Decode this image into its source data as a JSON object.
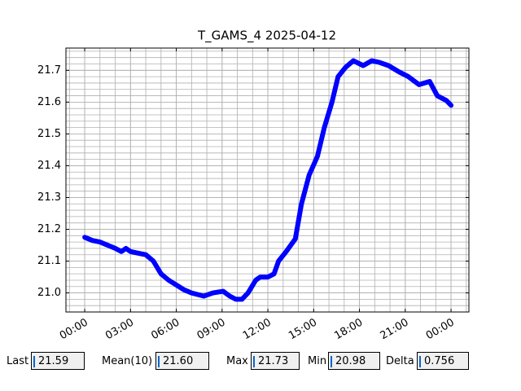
{
  "chart_data": {
    "type": "line",
    "title": "T_GAMS_4 2025-04-12",
    "x": [
      0,
      0.5,
      1,
      1.5,
      2,
      2.4,
      2.7,
      3,
      3.5,
      4,
      4.5,
      5,
      5.5,
      6,
      6.5,
      7,
      7.8,
      8.4,
      9.07,
      9.5,
      9.9,
      10.3,
      10.7,
      11.2,
      11.5,
      12,
      12.4,
      12.7,
      13.2,
      13.8,
      14.2,
      14.7,
      15.25,
      15.7,
      16.2,
      16.6,
      17.1,
      17.6,
      18.24,
      18.8,
      19.3,
      19.9,
      20.6,
      21.2,
      21.9,
      22.6,
      23.1,
      23.7,
      24
    ],
    "series": [
      {
        "name": "T_GAMS_4",
        "color": "#0000ff",
        "values": [
          21.175,
          21.165,
          21.16,
          21.15,
          21.14,
          21.13,
          21.14,
          21.13,
          21.125,
          21.12,
          21.1,
          21.06,
          21.04,
          21.025,
          21.01,
          21.0,
          20.99,
          21.0,
          21.005,
          20.99,
          20.98,
          20.98,
          21.0,
          21.04,
          21.05,
          21.05,
          21.06,
          21.1,
          21.13,
          21.17,
          21.28,
          21.37,
          21.43,
          21.52,
          21.6,
          21.68,
          21.71,
          21.73,
          21.715,
          21.73,
          21.725,
          21.715,
          21.695,
          21.68,
          21.655,
          21.665,
          21.62,
          21.605,
          21.59
        ]
      }
    ],
    "xlim": [
      -1.23,
      25.17
    ],
    "xticks": [
      {
        "value": 0,
        "label": "00:00"
      },
      {
        "value": 3,
        "label": "03:00"
      },
      {
        "value": 6,
        "label": "06:00"
      },
      {
        "value": 9,
        "label": "09:00"
      },
      {
        "value": 12,
        "label": "12:00"
      },
      {
        "value": 15,
        "label": "15:00"
      },
      {
        "value": 18,
        "label": "18:00"
      },
      {
        "value": 21,
        "label": "21:00"
      },
      {
        "value": 24,
        "label": "00:00"
      }
    ],
    "ylim": [
      20.94,
      21.77
    ],
    "yticks": [
      {
        "value": 21,
        "label": "21.0"
      },
      21.1,
      21.2,
      21.3,
      21.4,
      21.5,
      21.6,
      21.7
    ],
    "grid": true,
    "minor_grid_step": {
      "x": 1,
      "y": 0.02
    }
  },
  "stats": [
    {
      "label": "Last",
      "value": "21.59"
    },
    {
      "label": "Mean(10)",
      "value": "21.60"
    },
    {
      "label": "Max",
      "value": "21.73"
    },
    {
      "label": "Min",
      "value": "20.98"
    },
    {
      "label": "Delta",
      "value": "0.756"
    }
  ]
}
